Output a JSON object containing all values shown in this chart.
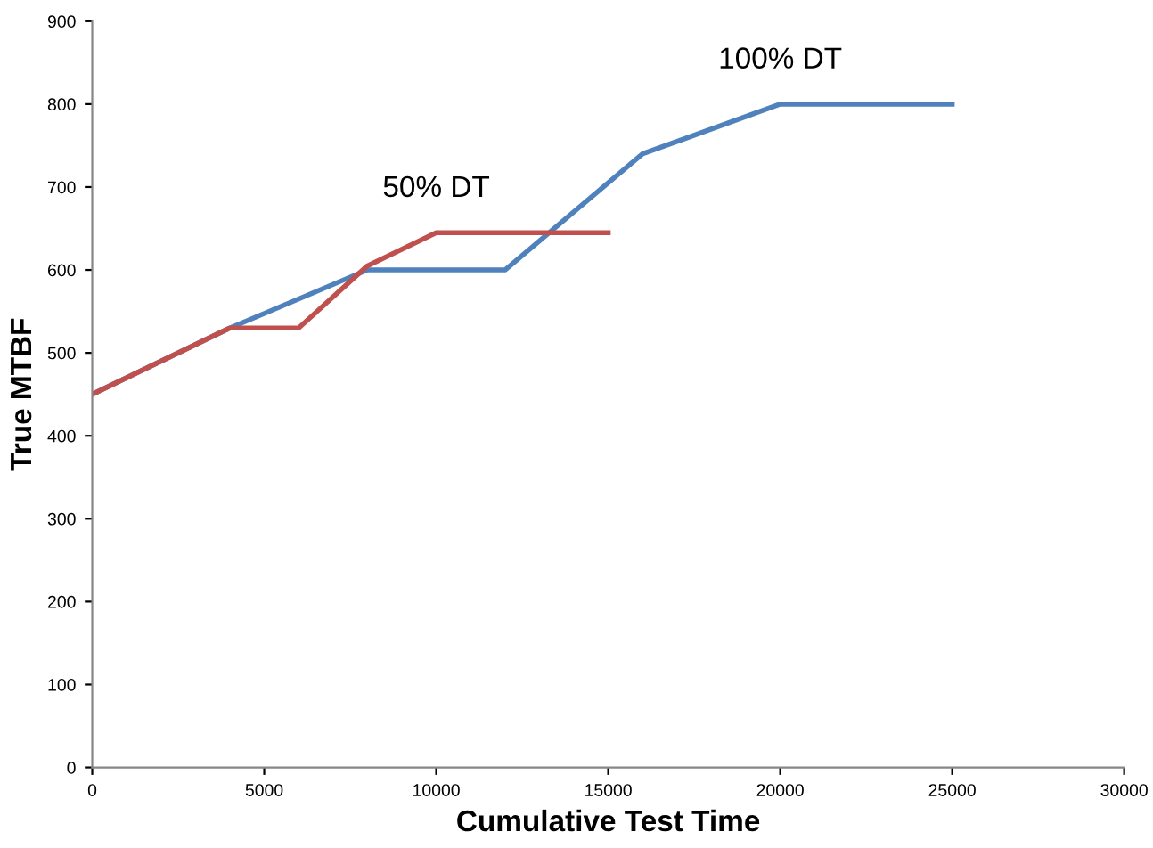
{
  "chart_data": {
    "type": "line",
    "xlabel": "Cumulative Test Time",
    "ylabel": "True MTBF",
    "xlim": [
      0,
      30000
    ],
    "xticks": [
      0,
      5000,
      10000,
      15000,
      20000,
      25000,
      30000
    ],
    "ylim": [
      0,
      900
    ],
    "yticks": [
      0,
      100,
      200,
      300,
      400,
      500,
      600,
      700,
      800,
      900
    ],
    "grid": false,
    "legend": false,
    "marker": "none",
    "line_style": "solid",
    "series": [
      {
        "name": "100% DT",
        "color": "#4f81bd",
        "x": [
          0,
          4000,
          8000,
          12000,
          16000,
          20000,
          25000
        ],
        "values": [
          450,
          530,
          600,
          600,
          740,
          800,
          800
        ]
      },
      {
        "name": "50% DT",
        "color": "#c0504d",
        "x": [
          0,
          4000,
          6000,
          8000,
          10000,
          15000
        ],
        "values": [
          450,
          530,
          530,
          605,
          645,
          645
        ]
      }
    ]
  }
}
